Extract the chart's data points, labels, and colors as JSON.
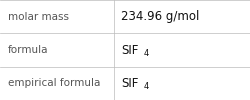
{
  "rows": [
    {
      "label": "molar mass",
      "value": "234.96 g/mol",
      "has_subscript": false,
      "main": "",
      "subscript": ""
    },
    {
      "label": "formula",
      "value": "",
      "has_subscript": true,
      "main": "SIF",
      "subscript": "4"
    },
    {
      "label": "empirical formula",
      "value": "",
      "has_subscript": true,
      "main": "SIF",
      "subscript": "4"
    }
  ],
  "col_split": 0.455,
  "bg_color": "#ffffff",
  "line_color": "#bbbbbb",
  "label_color": "#555555",
  "value_color": "#111111",
  "label_fontsize": 7.5,
  "value_fontsize": 8.5,
  "sub_fontsize": 6.0,
  "font_family": "DejaVu Sans"
}
